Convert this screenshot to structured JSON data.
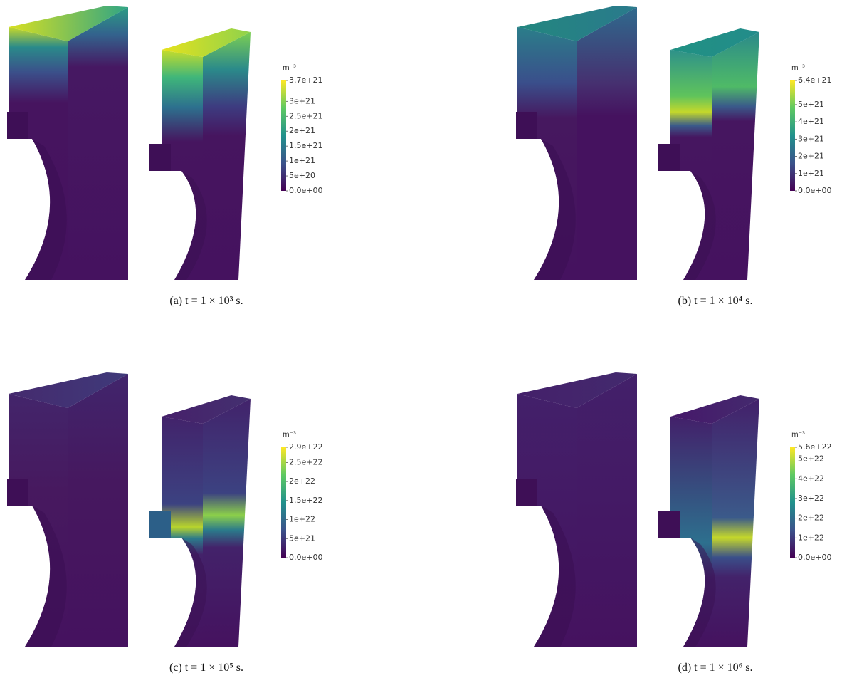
{
  "panels": [
    {
      "caption": "(a) t = 1 × 10³ s.",
      "unit": "m⁻³",
      "lim": [
        0,
        3.7e+21
      ],
      "ticks": [
        {
          "value": 3.7e+21,
          "label": "3.7e+21"
        },
        {
          "value": 3e+21,
          "label": "3e+21"
        },
        {
          "value": 2.5e+21,
          "label": "2.5e+21"
        },
        {
          "value": 2e+21,
          "label": "2e+21"
        },
        {
          "value": 1.5e+21,
          "label": "1.5e+21"
        },
        {
          "value": 1e+21,
          "label": "1e+21"
        },
        {
          "value": 5e+20,
          "label": "5e+20"
        },
        {
          "value": 0,
          "label": "0.0e+00"
        }
      ]
    },
    {
      "caption": "(b) t = 1 × 10⁴ s.",
      "unit": "m⁻³",
      "lim": [
        0,
        6.4e+21
      ],
      "ticks": [
        {
          "value": 6.4e+21,
          "label": "6.4e+21"
        },
        {
          "value": 5e+21,
          "label": "5e+21"
        },
        {
          "value": 4e+21,
          "label": "4e+21"
        },
        {
          "value": 3e+21,
          "label": "3e+21"
        },
        {
          "value": 2e+21,
          "label": "2e+21"
        },
        {
          "value": 1e+21,
          "label": "1e+21"
        },
        {
          "value": 0,
          "label": "0.0e+00"
        }
      ]
    },
    {
      "caption": "(c) t = 1 × 10⁵ s.",
      "unit": "m⁻³",
      "lim": [
        0,
        2.9e+22
      ],
      "ticks": [
        {
          "value": 2.9e+22,
          "label": "2.9e+22"
        },
        {
          "value": 2.5e+22,
          "label": "2.5e+22"
        },
        {
          "value": 2e+22,
          "label": "2e+22"
        },
        {
          "value": 1.5e+22,
          "label": "1.5e+22"
        },
        {
          "value": 1e+22,
          "label": "1e+22"
        },
        {
          "value": 5e+21,
          "label": "5e+21"
        },
        {
          "value": 0,
          "label": "0.0e+00"
        }
      ]
    },
    {
      "caption": "(d) t = 1 × 10⁶ s.",
      "unit": "m⁻³",
      "lim": [
        0,
        5.6e+22
      ],
      "ticks": [
        {
          "value": 5.6e+22,
          "label": "5.6e+22"
        },
        {
          "value": 5e+22,
          "label": "5e+22"
        },
        {
          "value": 4e+22,
          "label": "4e+22"
        },
        {
          "value": 3e+22,
          "label": "3e+22"
        },
        {
          "value": 2e+22,
          "label": "2e+22"
        },
        {
          "value": 1e+22,
          "label": "1e+22"
        },
        {
          "value": 0,
          "label": "0.0e+00"
        }
      ]
    }
  ]
}
